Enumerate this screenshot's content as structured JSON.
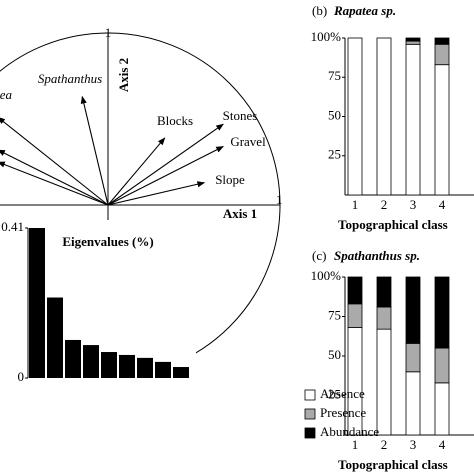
{
  "chart_data": [
    {
      "type": "vectors",
      "xlabel": "Axis 1",
      "ylabel": "Axis 2",
      "xlim": [
        -1,
        1
      ],
      "ylim": [
        -1,
        1
      ],
      "xticks": [
        1
      ],
      "yticks": [
        1
      ],
      "names": [
        "Rapatea",
        "Spathanthus",
        "Blocks",
        "Stones",
        "Gravel",
        "Slope",
        null,
        null
      ],
      "x": [
        -0.64,
        -0.15,
        0.33,
        0.67,
        0.67,
        0.56,
        -0.64,
        -0.64
      ],
      "y": [
        0.51,
        0.63,
        0.39,
        0.47,
        0.34,
        0.13,
        0.32,
        0.25
      ]
    },
    {
      "type": "bar",
      "title": "Eigenvalues (%)",
      "values": [
        0.41,
        0.22,
        0.104,
        0.09,
        0.071,
        0.063,
        0.055,
        0.044,
        0.03
      ],
      "color": "#000000",
      "ylim": [
        0,
        0.41
      ],
      "yticks": [
        0,
        0.41
      ]
    },
    {
      "type": "stacked_bar",
      "panel": "(b)",
      "title": "Rapatea sp.",
      "xlabel": "Topographical class",
      "categories": [
        "1",
        "2",
        "3",
        "4"
      ],
      "ylim": [
        0,
        100
      ],
      "yticks": [
        {
          "value": 100,
          "label": "100%"
        },
        75,
        50,
        25
      ],
      "series": [
        {
          "color": "#ffffff",
          "values": [
            100,
            100,
            96,
            83
          ]
        },
        {
          "color": "#aaaaaa",
          "values": [
            0,
            0,
            2,
            13
          ]
        },
        {
          "color": "#000000",
          "values": [
            0,
            0,
            2,
            4
          ]
        }
      ]
    },
    {
      "type": "stacked_bar",
      "panel": "(c)",
      "title": "Spathanthus sp.",
      "xlabel": "Topographical class",
      "categories": [
        "1",
        "2",
        "3",
        "4"
      ],
      "ylim": [
        0,
        100
      ],
      "yticks": [
        {
          "value": 100,
          "label": "100%"
        },
        75,
        50,
        25
      ],
      "series": [
        {
          "name": "Absence",
          "color": "#ffffff",
          "values": [
            68,
            67,
            40,
            33
          ]
        },
        {
          "name": "Presence",
          "color": "#aaaaaa",
          "values": [
            15,
            14,
            18,
            22
          ]
        },
        {
          "name": "Abundance",
          "color": "#000000",
          "values": [
            17,
            19,
            42,
            45
          ]
        }
      ]
    }
  ]
}
